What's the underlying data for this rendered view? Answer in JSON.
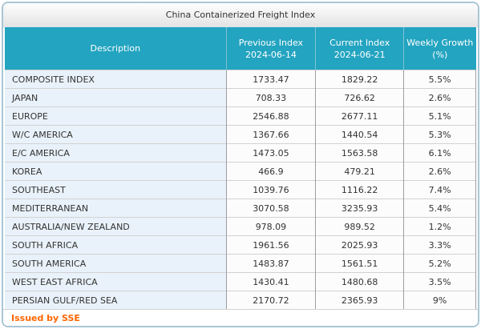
{
  "widget": {
    "title": "China Containerized Freight Index",
    "footer": "Issued by SSE"
  },
  "colors": {
    "header_bg": "#23a4c0",
    "header_text": "#ffffff",
    "header_separator": "#7ec3d5",
    "description_cell_bg": "#e9f2fa",
    "value_cell_bg": "#fcfcfd",
    "vertical_border": "#9e9e9e",
    "horizontal_border": "#d2d2d2",
    "outer_border": "#a9c6d6",
    "footer_text": "#ff6600",
    "body_text": "#333333"
  },
  "table": {
    "columns": [
      {
        "label": "Description",
        "sublabel": ""
      },
      {
        "label": "Previous Index",
        "sublabel": "2024-06-14"
      },
      {
        "label": "Current Index",
        "sublabel": "2024-06-21"
      },
      {
        "label": "Weekly Growth",
        "sublabel": "(%)"
      }
    ],
    "rows": [
      {
        "description": "COMPOSITE INDEX",
        "previous": "1733.47",
        "current": "1829.22",
        "growth": "5.5%"
      },
      {
        "description": "JAPAN",
        "previous": "708.33",
        "current": "726.62",
        "growth": "2.6%"
      },
      {
        "description": "EUROPE",
        "previous": "2546.88",
        "current": "2677.11",
        "growth": "5.1%"
      },
      {
        "description": "W/C AMERICA",
        "previous": "1367.66",
        "current": "1440.54",
        "growth": "5.3%"
      },
      {
        "description": "E/C AMERICA",
        "previous": "1473.05",
        "current": "1563.58",
        "growth": "6.1%"
      },
      {
        "description": "KOREA",
        "previous": "466.9",
        "current": "479.21",
        "growth": "2.6%"
      },
      {
        "description": "SOUTHEAST",
        "previous": "1039.76",
        "current": "1116.22",
        "growth": "7.4%"
      },
      {
        "description": "MEDITERRANEAN",
        "previous": "3070.58",
        "current": "3235.93",
        "growth": "5.4%"
      },
      {
        "description": "AUSTRALIA/NEW ZEALAND",
        "previous": "978.09",
        "current": "989.52",
        "growth": "1.2%"
      },
      {
        "description": "SOUTH AFRICA",
        "previous": "1961.56",
        "current": "2025.93",
        "growth": "3.3%"
      },
      {
        "description": "SOUTH AMERICA",
        "previous": "1483.87",
        "current": "1561.51",
        "growth": "5.2%"
      },
      {
        "description": "WEST EAST AFRICA",
        "previous": "1430.41",
        "current": "1480.68",
        "growth": "3.5%"
      },
      {
        "description": "PERSIAN GULF/RED SEA",
        "previous": "2170.72",
        "current": "2365.93",
        "growth": "9%"
      }
    ]
  },
  "chart_data": {
    "type": "table",
    "title": "China Containerized Freight Index",
    "columns": [
      "Description",
      "Previous Index 2024-06-14",
      "Current Index 2024-06-21",
      "Weekly Growth (%)"
    ],
    "rows": [
      [
        "COMPOSITE INDEX",
        1733.47,
        1829.22,
        "5.5%"
      ],
      [
        "JAPAN",
        708.33,
        726.62,
        "2.6%"
      ],
      [
        "EUROPE",
        2546.88,
        2677.11,
        "5.1%"
      ],
      [
        "W/C AMERICA",
        1367.66,
        1440.54,
        "5.3%"
      ],
      [
        "E/C AMERICA",
        1473.05,
        1563.58,
        "6.1%"
      ],
      [
        "KOREA",
        466.9,
        479.21,
        "2.6%"
      ],
      [
        "SOUTHEAST",
        1039.76,
        1116.22,
        "7.4%"
      ],
      [
        "MEDITERRANEAN",
        3070.58,
        3235.93,
        "5.4%"
      ],
      [
        "AUSTRALIA/NEW ZEALAND",
        978.09,
        989.52,
        "1.2%"
      ],
      [
        "SOUTH AFRICA",
        1961.56,
        2025.93,
        "3.3%"
      ],
      [
        "SOUTH AMERICA",
        1483.87,
        1561.51,
        "5.2%"
      ],
      [
        "WEST EAST AFRICA",
        1430.41,
        1480.68,
        "3.5%"
      ],
      [
        "PERSIAN GULF/RED SEA",
        2170.72,
        2365.93,
        "9%"
      ]
    ],
    "footer": "Issued by SSE",
    "legend_position": "none",
    "grid": true
  }
}
